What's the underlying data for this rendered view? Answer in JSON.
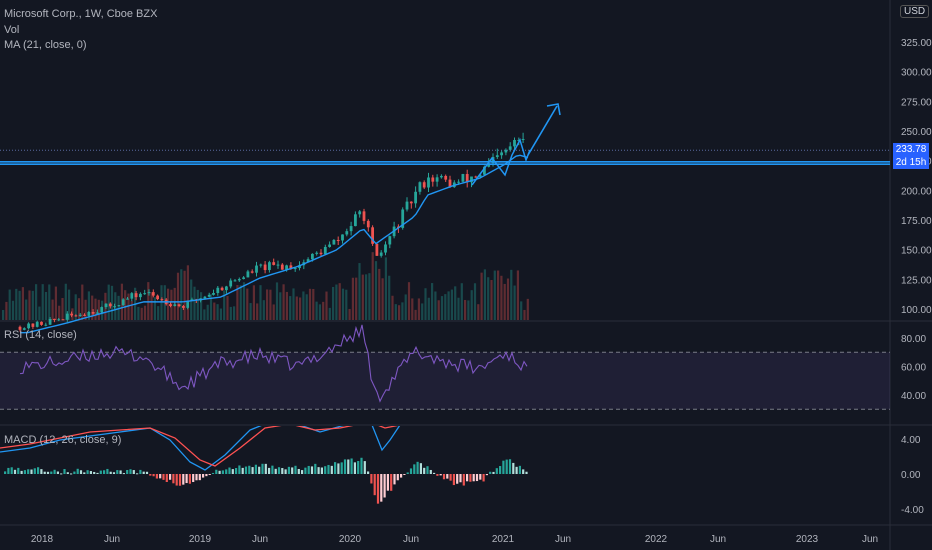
{
  "legend": {
    "symbol": "Microsoft Corp., 1W, Cboe BZX",
    "volume": "Vol",
    "ma": "MA (21, close, 0)",
    "rsi": "RSI (14, close)",
    "macd": "MACD (12, 26, close, 9)"
  },
  "price_tag": "233.78",
  "countdown_tag": "2d 15h",
  "currency": "USD",
  "colors": {
    "background": "#131722",
    "up": "#26a69a",
    "down": "#ef5350",
    "ma": "#2196f3",
    "rsi": "#7e57c2",
    "macd_line": "#2196f3",
    "signal_line": "#ff5252",
    "drawing": "#2196f3"
  },
  "chart_data": [
    {
      "type": "candlestick",
      "title": "Microsoft Corp., 1W, Cboe BZX",
      "x": [
        "2017-12",
        "2018-03",
        "2018-06",
        "2018-09",
        "2018-12",
        "2019-03",
        "2019-06",
        "2019-09",
        "2019-12",
        "2020-02",
        "2020-03",
        "2020-06",
        "2020-07",
        "2020-09",
        "2020-11",
        "2021-01",
        "2021-02",
        "2021-03"
      ],
      "close": [
        85,
        93,
        101,
        114,
        102,
        118,
        135,
        137,
        157,
        183,
        140,
        196,
        212,
        205,
        214,
        231,
        243,
        233.78
      ],
      "ma_21": [
        80,
        88,
        97,
        106,
        106,
        110,
        126,
        136,
        150,
        168,
        155,
        178,
        196,
        204,
        210,
        222,
        230,
        227
      ],
      "y_ticks": [
        100,
        125,
        150,
        175,
        200,
        225,
        250,
        275,
        300,
        325
      ],
      "ylim": [
        88,
        340
      ],
      "x_tick_labels": [
        "2018",
        "Jun",
        "2019",
        "Jun",
        "2020",
        "Jun",
        "2021",
        "Jun",
        "2022",
        "Jun",
        "2023",
        "Jun"
      ],
      "horizontal_lines": [
        222,
        224,
        233.78
      ],
      "projection_arrow_end_y": 260
    },
    {
      "type": "line",
      "title": "RSI (14, close)",
      "x": [
        "2017-12",
        "2018-03",
        "2018-06",
        "2018-09",
        "2018-12",
        "2019-03",
        "2019-06",
        "2019-09",
        "2019-12",
        "2020-02",
        "2020-03",
        "2020-06",
        "2020-09",
        "2020-11",
        "2021-01",
        "2021-03"
      ],
      "values": [
        60,
        64,
        70,
        67,
        45,
        62,
        68,
        60,
        75,
        86,
        37,
        70,
        62,
        58,
        70,
        57
      ],
      "y_ticks": [
        40,
        60,
        80
      ],
      "bands": [
        30,
        70
      ],
      "ylim": [
        20,
        90
      ]
    },
    {
      "type": "bar",
      "title": "MACD (12, 26, close, 9)",
      "x": [
        "2017-12",
        "2018-03",
        "2018-06",
        "2018-09",
        "2018-12",
        "2019-03",
        "2019-06",
        "2019-09",
        "2019-12",
        "2020-02",
        "2020-03",
        "2020-06",
        "2020-09",
        "2020-11",
        "2021-01",
        "2021-03"
      ],
      "histogram": [
        0.6,
        0.3,
        0.4,
        0.2,
        -1.4,
        0.5,
        1.0,
        0.6,
        1.3,
        1.8,
        -3.5,
        1.5,
        -1.3,
        -0.9,
        1.6,
        0.2
      ],
      "y_ticks": [
        -4.0,
        0.0,
        4.0
      ]
    }
  ]
}
